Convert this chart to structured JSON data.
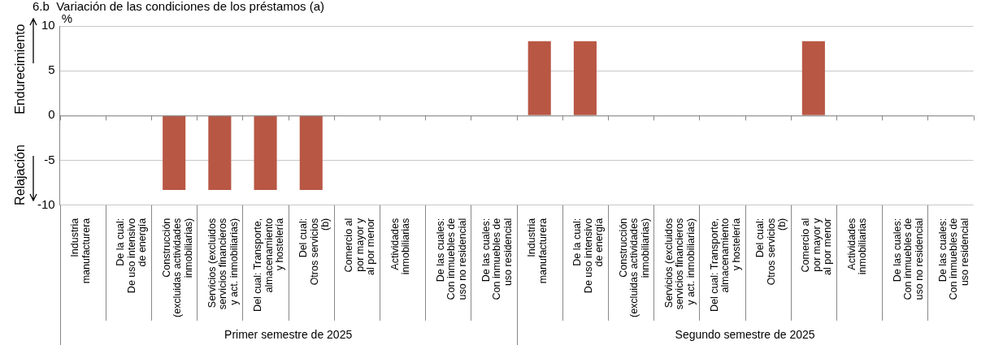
{
  "chart_data": {
    "type": "bar",
    "title": "6.b  Variación de las condiciones de los préstamos (a)",
    "ylabel": "%",
    "categories": [
      "Industria\nmanufacturera",
      "De la cual:\nDe uso intensivo\nde energía",
      "Construcción\n(excluidas actividades\ninmobiliarias)",
      "Servicios (excluidos\nservicios financieros\ny act. inmobiliarias)",
      "Del cual: Transporte,\nalmacenamiento\ny hostelería",
      "Del cual:\nOtros servicios\n(b)",
      "Comercio al\npor mayor y\nal por menor",
      "Actividades\ninmobiliarias",
      "De las cuales:\nCon inmuebles de\nuso no residencial",
      "De las cuales:\nCon inmuebles de\nuso residencial",
      "Industria\nmanufacturera",
      "De la cual:\nDe uso intensivo\nde energía",
      "Construcción\n(excluidas actividades\ninmobiliarias)",
      "Servicios (excluidos\nservicios financieros\ny act. inmobiliarias)",
      "Del cual: Transporte,\nalmacenamiento\ny hostelería",
      "Del cual:\nOtros servicios\n(b)",
      "Comercio al\npor mayor y\nal por menor",
      "Actividades\ninmobiliarias",
      "De las cuales:\nCon inmuebles de\nuso no residencial",
      "De las cuales:\nCon inmuebles de\nuso residencial"
    ],
    "values": [
      0,
      0,
      -8.3,
      -8.3,
      -8.3,
      -8.3,
      0,
      0,
      0,
      0,
      8.3,
      8.3,
      0,
      0,
      0,
      0,
      8.3,
      0,
      0,
      0
    ],
    "color": "#b85744",
    "ylim": [
      -10,
      10
    ],
    "yticks": [
      -10,
      -5,
      0,
      5,
      10
    ],
    "grid": "y",
    "legend": false,
    "annotations": [
      "Primer semestre de 2025",
      "Segundo semestre de 2025",
      "Endurecimiento",
      "Relajación"
    ]
  }
}
